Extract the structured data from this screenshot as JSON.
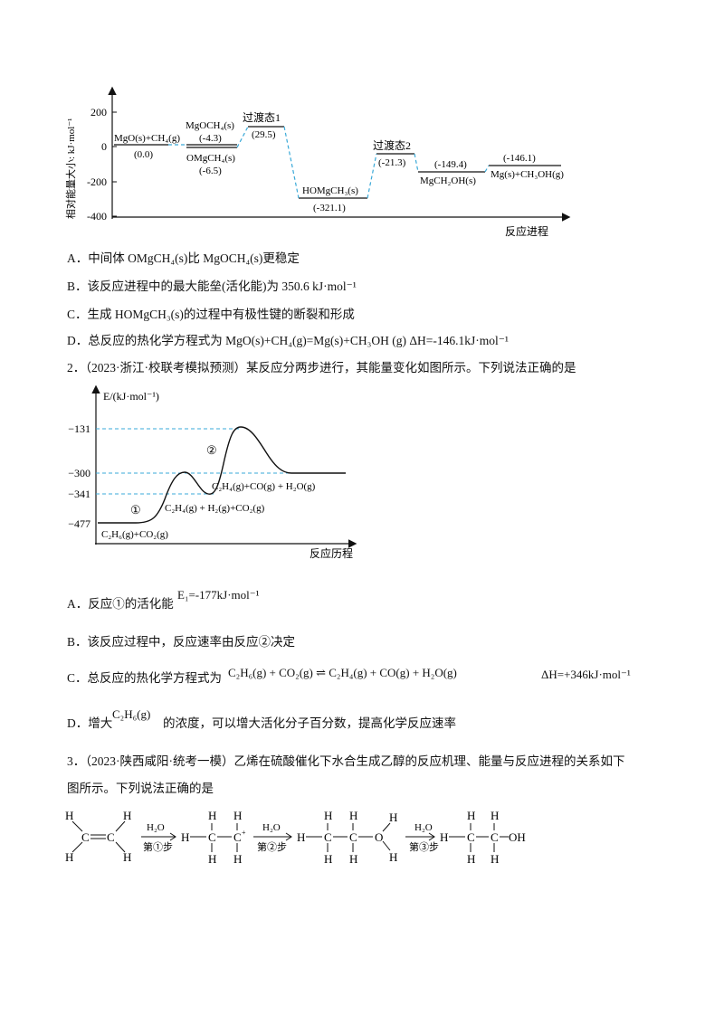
{
  "chart1": {
    "ylabel": "相对能量大小: kJ·mol⁻¹",
    "xlabel": "反应进程",
    "yticks": [
      "200",
      "0",
      "-200",
      "-400"
    ],
    "labels": {
      "mgo_ch4": "MgO(s)+CH₄(g)",
      "v0": "(0.0)",
      "mgoch4": "MgOCH₄(s)",
      "v43": "(-4.3)",
      "omgch4": "OMgCH₄(s)",
      "v65": "(-6.5)",
      "ts1": "过渡态1",
      "v295": "(29.5)",
      "homgch3": "HOMgCH₃(s)",
      "v3211": "(-321.1)",
      "ts2": "过渡态2",
      "v213": "(-21.3)",
      "v1494": "(-149.4)",
      "mgch2oh": "MgCH₂OH(s)",
      "v1461": "(-146.1)",
      "product": "Mg(s)+CH₃OH(g)"
    }
  },
  "q1_options": {
    "a": "A．中间体 OMgCH₄(s)比 MgOCH₄(s)更稳定",
    "b": "B．该反应进程中的最大能垒(活化能)为 350.6 kJ·mol⁻¹",
    "c": "C．生成 HOMgCH₃(s)的过程中有极性键的断裂和形成",
    "d": "D．总反应的热化学方程式为 MgO(s)+CH₄(g)=Mg(s)+CH₃OH (g) ΔH=-146.1kJ·mol⁻¹"
  },
  "q2": {
    "stem": "2．（2023·浙江·校联考模拟预测）某反应分两步进行，其能量变化如图所示。下列说法正确的是",
    "chart": {
      "ylabel": "E/(kJ·mol⁻¹)",
      "xlabel": "反应历程",
      "ticks": [
        "−131",
        "−300",
        "−341",
        "−477"
      ],
      "step1": "①",
      "step2": "②",
      "reactant": "C₂H₆(g)+CO₂(g)",
      "intermediate": "C₂H₄(g) + H₂(g)+CO₂(g)",
      "product": "C₂H₄(g)+CO(g) + H₂O(g)"
    },
    "a_prefix": "A．反应①的活化能",
    "a_formula": "E₁=-177kJ·mol⁻¹",
    "b": "B．该反应过程中，反应速率由反应②决定",
    "c_prefix": "C．总反应的热化学方程式为",
    "c_equation": "C₂H₆(g) + CO₂(g) ⇌ C₂H₄(g) + CO(g) + H₂O(g)",
    "c_dh": "ΔH=+346kJ·mol⁻¹",
    "d_prefix": "D．增大",
    "d_formula": "C₂H₆(g)",
    "d_suffix": "的浓度，可以增大活化分子百分数，提高化学反应速率"
  },
  "q3": {
    "stem_line1": "3．（2023·陕西咸阳·统考一模）乙烯在硫酸催化下水合生成乙醇的反应机理、能量与反应进程的关系如下",
    "stem_line2": "图所示。下列说法正确的是",
    "reagent": "H₂O",
    "step1": "第①步",
    "step2": "第②步",
    "step3": "第③步",
    "atom_h": "H",
    "atom_c": "C",
    "atom_o": "O",
    "oh": "OH",
    "plus": "+"
  }
}
